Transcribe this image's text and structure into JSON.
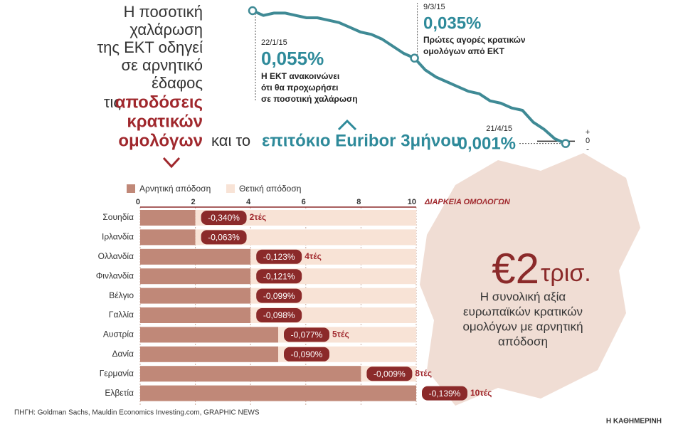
{
  "headline": {
    "lines": [
      "Η ποσοτική",
      "χαλάρωση",
      "της ΕΚΤ οδηγεί",
      "σε αρνητικό",
      "έδαφος"
    ],
    "bonds_prefix": "τις",
    "bonds": [
      "αποδόσεις",
      "κρατικών",
      "ομολόγων"
    ],
    "rate_prefix": "και το",
    "rate": "επιτόκιο Euribor 3μήνου"
  },
  "callout": {
    "amount": "€2",
    "unit": "τρισ.",
    "lines": [
      "Η συνολική αξία",
      "ευρωπαϊκών κρατικών",
      "ομολόγων με αρνητική",
      "απόδοση"
    ]
  },
  "source": "ΠΗΓΗ: Goldman Sachs, Mauldin Economics Investing.com, GRAPHIC NEWS",
  "credit": "Η ΚΑΘΗΜΕΡΙΝΗ",
  "chart_data": [
    {
      "type": "line",
      "categories": [
        "22/1/15",
        null,
        null,
        null,
        null,
        null,
        null,
        null,
        null,
        null,
        null,
        null,
        null,
        null,
        null,
        "9/3/15",
        null,
        null,
        null,
        null,
        null,
        null,
        null,
        null,
        null,
        null,
        null,
        null,
        null,
        "21/4/15"
      ],
      "series": [
        {
          "name": "Euribor 3μήνου",
          "color": "#3f8a95",
          "values": [
            0.055,
            0.053,
            0.054,
            0.054,
            0.053,
            0.052,
            0.052,
            0.051,
            0.05,
            0.048,
            0.046,
            0.045,
            0.043,
            0.04,
            0.037,
            0.035,
            0.03,
            0.027,
            0.025,
            0.023,
            0.021,
            0.02,
            0.017,
            0.016,
            0.014,
            0.013,
            0.008,
            0.005,
            0.001,
            -0.001
          ],
          "value_labels": [
            "0,055%",
            null,
            null,
            null,
            null,
            null,
            null,
            null,
            null,
            null,
            null,
            null,
            null,
            null,
            null,
            "0,035%",
            null,
            null,
            null,
            null,
            null,
            null,
            null,
            null,
            null,
            null,
            null,
            null,
            null,
            "-0,001%"
          ]
        }
      ],
      "annotations": [
        {
          "lines": [
            "Η ΕΚΤ ανακοινώνει",
            "ότι θα προχωρήσει",
            "σε ποσοτική χαλάρωση"
          ]
        },
        {
          "lines": [
            "Πρώτες αγορές κρατικών",
            "ομολόγων από ΕΚΤ"
          ]
        }
      ],
      "ylim": [
        -0.005,
        0.058
      ],
      "yticks": [
        0
      ],
      "sign_labels": [
        "+",
        "-"
      ]
    },
    {
      "type": "bar",
      "orientation": "horizontal",
      "stacked": true,
      "categories": [
        "Σουηδία",
        "Ιρλανδία",
        "Ολλανδία",
        "Φινλανδία",
        "Βέλγιο",
        "Γαλλία",
        "Αυστρία",
        "Δανία",
        "Γερμανία",
        "Ελβετία"
      ],
      "series": [
        {
          "name": "Αρνητική απόδοση",
          "color": "#c08878",
          "values": [
            2,
            2,
            4,
            4,
            4,
            4,
            5,
            5,
            8,
            10
          ],
          "value_labels": [
            "2τές",
            null,
            "4τές",
            null,
            null,
            null,
            "5τές",
            null,
            "8τές",
            "10τές"
          ]
        },
        {
          "name": "Θετική απόδοση",
          "color": "#f8e3d6",
          "values": [
            8,
            8,
            6,
            6,
            6,
            6,
            5,
            5,
            2,
            0
          ]
        }
      ],
      "yields": [
        -0.34,
        -0.063,
        -0.123,
        -0.121,
        -0.099,
        -0.098,
        -0.077,
        -0.09,
        -0.009,
        -0.139
      ],
      "yield_labels": [
        "-0,340%",
        "-0,063%",
        "-0,123%",
        "-0,121%",
        "-0,099%",
        "-0,098%",
        "-0,077%",
        "-0,090%",
        "-0,009%",
        "-0,139%"
      ],
      "yield_color": "#8b2a2a",
      "xlabel": "ΔΙΑΡΚΕΙΑ ΟΜΟΛΟΓΩΝ",
      "xlim": [
        0,
        10
      ],
      "xticks": [
        0,
        2,
        4,
        6,
        8,
        10
      ],
      "grid": true
    }
  ]
}
